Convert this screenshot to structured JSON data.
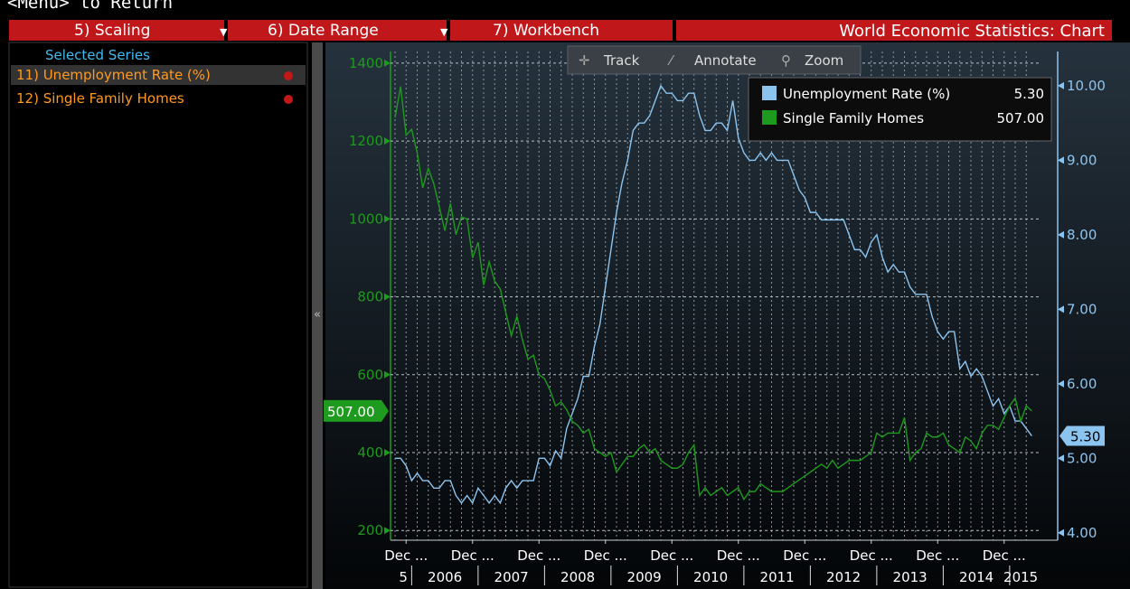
{
  "top_hint": "<Menu> to Return",
  "menu": [
    "5) Scaling",
    "6) Date Range",
    "7) Workbench"
  ],
  "window_title": "World Economic Statistics: Chart",
  "sidebar": {
    "header": "Selected Series",
    "items": [
      "11) Unemployment Rate (%)",
      "12) Single Family Homes"
    ]
  },
  "toolbar": [
    "Track",
    "Annotate",
    "Zoom"
  ],
  "chart_data": {
    "type": "line",
    "x": [
      "2005-10",
      "2005-11",
      "2005-12",
      "2006-01",
      "2006-02",
      "2006-03",
      "2006-04",
      "2006-05",
      "2006-06",
      "2006-07",
      "2006-08",
      "2006-09",
      "2006-10",
      "2006-11",
      "2006-12",
      "2007-01",
      "2007-02",
      "2007-03",
      "2007-04",
      "2007-05",
      "2007-06",
      "2007-07",
      "2007-08",
      "2007-09",
      "2007-10",
      "2007-11",
      "2007-12",
      "2008-01",
      "2008-02",
      "2008-03",
      "2008-04",
      "2008-05",
      "2008-06",
      "2008-07",
      "2008-08",
      "2008-09",
      "2008-10",
      "2008-11",
      "2008-12",
      "2009-01",
      "2009-02",
      "2009-03",
      "2009-04",
      "2009-05",
      "2009-06",
      "2009-07",
      "2009-08",
      "2009-09",
      "2009-10",
      "2009-11",
      "2009-12",
      "2010-01",
      "2010-02",
      "2010-03",
      "2010-04",
      "2010-05",
      "2010-06",
      "2010-07",
      "2010-08",
      "2010-09",
      "2010-10",
      "2010-11",
      "2010-12",
      "2011-01",
      "2011-02",
      "2011-03",
      "2011-04",
      "2011-05",
      "2011-06",
      "2011-07",
      "2011-08",
      "2011-09",
      "2011-10",
      "2011-11",
      "2011-12",
      "2012-01",
      "2012-02",
      "2012-03",
      "2012-04",
      "2012-05",
      "2012-06",
      "2012-07",
      "2012-08",
      "2012-09",
      "2012-10",
      "2012-11",
      "2012-12",
      "2013-01",
      "2013-02",
      "2013-03",
      "2013-04",
      "2013-05",
      "2013-06",
      "2013-07",
      "2013-08",
      "2013-09",
      "2013-10",
      "2013-11",
      "2013-12",
      "2014-01",
      "2014-02",
      "2014-03",
      "2014-04",
      "2014-05",
      "2014-06",
      "2014-07",
      "2014-08",
      "2014-09",
      "2014-10",
      "2014-11",
      "2014-12",
      "2015-01",
      "2015-02",
      "2015-03",
      "2015-04",
      "2015-05"
    ],
    "series": [
      {
        "name": "Unemployment Rate (%)",
        "color": "#8cc4f0",
        "axis": "y2",
        "last_value_label": "5.30",
        "values": [
          5.0,
          5.0,
          4.9,
          4.7,
          4.8,
          4.7,
          4.7,
          4.6,
          4.6,
          4.7,
          4.7,
          4.5,
          4.4,
          4.5,
          4.4,
          4.6,
          4.5,
          4.4,
          4.5,
          4.4,
          4.6,
          4.7,
          4.6,
          4.7,
          4.7,
          4.7,
          5.0,
          5.0,
          4.9,
          5.1,
          5.0,
          5.4,
          5.6,
          5.8,
          6.1,
          6.1,
          6.5,
          6.8,
          7.3,
          7.8,
          8.3,
          8.7,
          9.0,
          9.4,
          9.5,
          9.5,
          9.6,
          9.8,
          10.0,
          9.9,
          9.9,
          9.8,
          9.8,
          9.9,
          9.9,
          9.6,
          9.4,
          9.4,
          9.5,
          9.5,
          9.4,
          9.8,
          9.3,
          9.1,
          9.0,
          9.0,
          9.1,
          9.0,
          9.1,
          9.0,
          9.0,
          9.0,
          8.8,
          8.6,
          8.5,
          8.3,
          8.3,
          8.2,
          8.2,
          8.2,
          8.2,
          8.2,
          8.0,
          7.8,
          7.8,
          7.7,
          7.9,
          8.0,
          7.7,
          7.5,
          7.6,
          7.5,
          7.5,
          7.3,
          7.2,
          7.2,
          7.2,
          6.9,
          6.7,
          6.6,
          6.7,
          6.7,
          6.2,
          6.3,
          6.1,
          6.2,
          6.1,
          5.9,
          5.7,
          5.8,
          5.6,
          5.7,
          5.5,
          5.5,
          5.4,
          5.3
        ]
      },
      {
        "name": "Single Family Homes",
        "color": "#1e9a1e",
        "last_value_label": "507.00",
        "values": [
          1260,
          1340,
          1215,
          1230,
          1170,
          1080,
          1130,
          1090,
          1030,
          970,
          1040,
          960,
          1005,
          1000,
          900,
          940,
          830,
          890,
          840,
          820,
          760,
          700,
          750,
          690,
          640,
          650,
          600,
          590,
          560,
          520,
          530,
          510,
          480,
          470,
          450,
          460,
          410,
          400,
          390,
          400,
          350,
          370,
          390,
          390,
          410,
          420,
          400,
          410,
          380,
          370,
          360,
          360,
          370,
          400,
          420,
          290,
          310,
          290,
          300,
          310,
          290,
          300,
          310,
          280,
          300,
          300,
          320,
          310,
          300,
          300,
          300,
          310,
          320,
          330,
          340,
          350,
          360,
          370,
          360,
          380,
          360,
          370,
          380,
          380,
          380,
          390,
          400,
          450,
          440,
          450,
          450,
          450,
          490,
          380,
          400,
          410,
          450,
          440,
          440,
          450,
          420,
          410,
          400,
          440,
          430,
          410,
          450,
          470,
          470,
          460,
          490,
          520,
          540,
          480,
          520,
          507
        ]
      }
    ],
    "ylim": [
      175,
      1430
    ],
    "yticks": [
      200,
      400,
      600,
      800,
      1000,
      1200,
      1400
    ],
    "y2lim": [
      3.9,
      10.46
    ],
    "y2ticks": [
      {
        "value": 4,
        "label": "4.00"
      },
      {
        "value": 5,
        "label": "5.00"
      },
      {
        "value": 6,
        "label": "6.00"
      },
      {
        "value": 7,
        "label": "7.00"
      },
      {
        "value": 8,
        "label": "8.00"
      },
      {
        "value": 9,
        "label": "9.00"
      },
      {
        "value": 10,
        "label": "10.00"
      }
    ],
    "xticks": [
      {
        "value": "2005-12",
        "label": "Dec ..."
      },
      {
        "value": "2006-12",
        "label": "Dec ..."
      },
      {
        "value": "2007-12",
        "label": "Dec ..."
      },
      {
        "value": "2008-12",
        "label": "Dec ..."
      },
      {
        "value": "2009-12",
        "label": "Dec ..."
      },
      {
        "value": "2010-12",
        "label": "Dec ..."
      },
      {
        "value": "2011-12",
        "label": "Dec ..."
      },
      {
        "value": "2012-12",
        "label": "Dec ..."
      },
      {
        "value": "2013-12",
        "label": "Dec ..."
      },
      {
        "value": "2014-12",
        "label": "Dec ..."
      }
    ],
    "year_ticks": [
      {
        "value": 2005,
        "label": "5"
      },
      2006,
      2007,
      2008,
      2009,
      2010,
      2011,
      2012,
      2013,
      2014,
      2015
    ],
    "grid": true
  }
}
